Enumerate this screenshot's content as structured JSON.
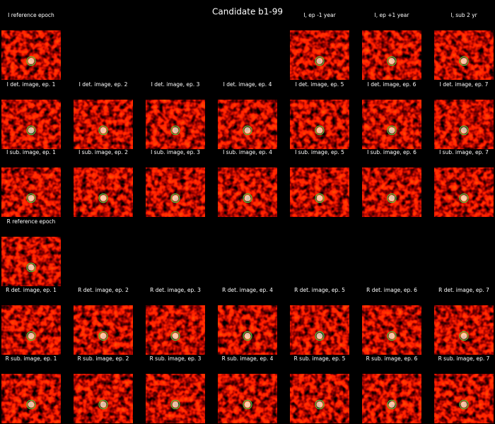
{
  "title": "Candidate b1-99",
  "rows": [
    {
      "panels": [
        {
          "label": "I reference epoch"
        },
        null,
        null,
        null,
        {
          "label": "I, ep -1 year"
        },
        {
          "label": "I, ep +1 year"
        },
        {
          "label": "I, sub 2 yr"
        }
      ]
    },
    {
      "panels": [
        {
          "label": "I det. image, ep. 1"
        },
        {
          "label": "I det. image, ep. 2"
        },
        {
          "label": "I det. image, ep. 3"
        },
        {
          "label": "I det. image, ep. 4"
        },
        {
          "label": "I det. image, ep. 5"
        },
        {
          "label": "I det. image, ep. 6"
        },
        {
          "label": "I det. image, ep. 7"
        }
      ]
    },
    {
      "panels": [
        {
          "label": "I sub. image, ep. 1"
        },
        {
          "label": "I sub. image, ep. 2"
        },
        {
          "label": "I sub. image, ep. 3"
        },
        {
          "label": "I sub. image, ep. 4"
        },
        {
          "label": "I sub. image, ep. 5"
        },
        {
          "label": "I sub. image, ep. 6"
        },
        {
          "label": "I sub. image, ep. 7"
        }
      ]
    },
    {
      "panels": [
        {
          "label": "R reference epoch"
        },
        null,
        null,
        null,
        null,
        null,
        null
      ]
    },
    {
      "panels": [
        {
          "label": "R det. image, ep. 1"
        },
        {
          "label": "R det. image, ep. 2"
        },
        {
          "label": "R det. image, ep. 3"
        },
        {
          "label": "R det. image, ep. 4"
        },
        {
          "label": "R det. image, ep. 5"
        },
        {
          "label": "R det. image, ep. 6"
        },
        {
          "label": "R det. image, ep. 7"
        }
      ]
    },
    {
      "panels": [
        {
          "label": "R sub. image, ep. 1"
        },
        {
          "label": "R sub. image, ep. 2"
        },
        {
          "label": "R sub. image, ep. 3"
        },
        {
          "label": "R sub. image, ep. 4"
        },
        {
          "label": "R sub. image, ep. 5"
        },
        {
          "label": "R sub. image, ep. 6"
        },
        {
          "label": "R sub. image, ep. 7"
        }
      ]
    }
  ]
}
